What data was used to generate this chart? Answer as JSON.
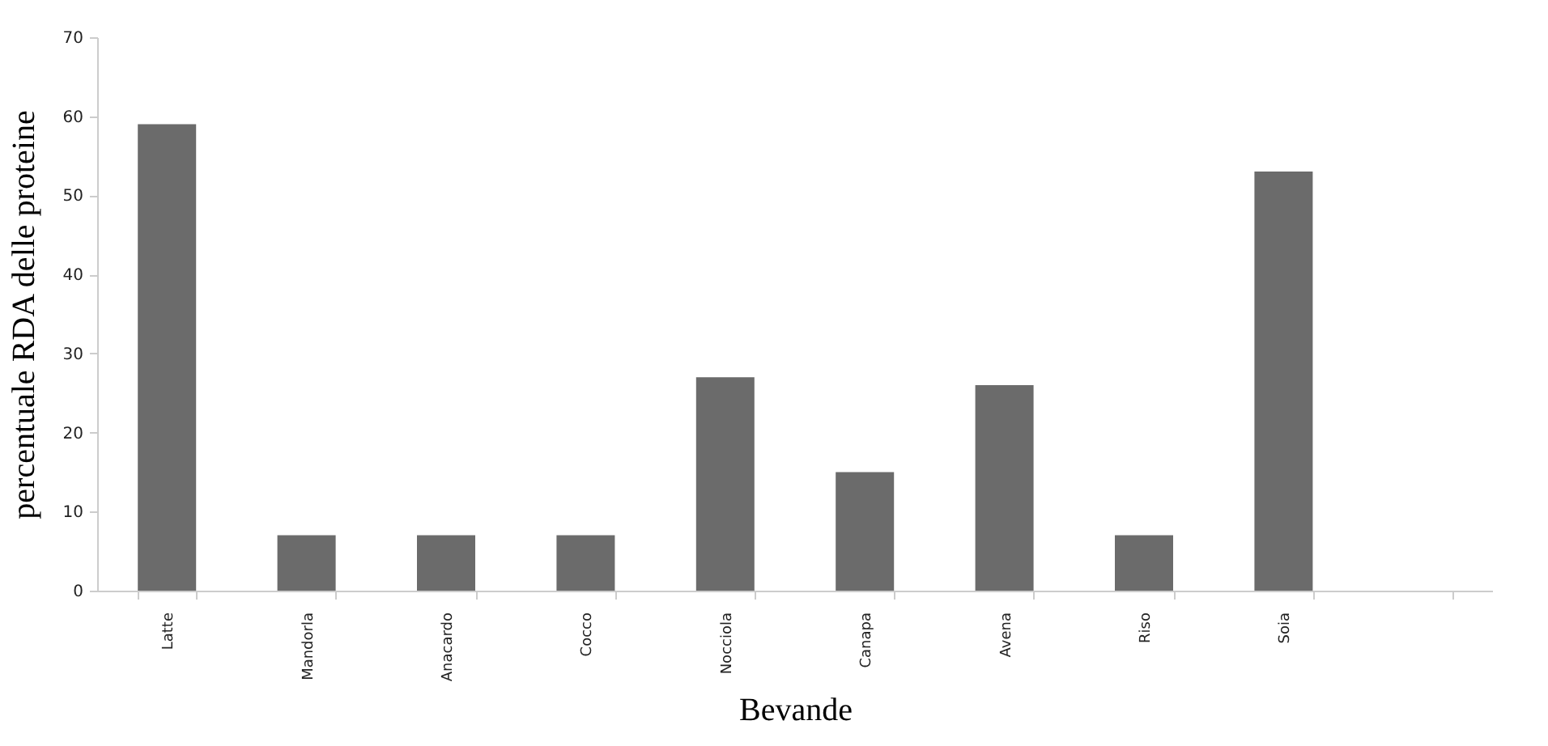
{
  "chart_data": {
    "type": "bar",
    "xlabel": "Bevande",
    "ylabel": "percentuale RDA delle proteine",
    "categories": [
      "Latte",
      "Mandorla",
      "Anacardo",
      "Cocco",
      "Nocciola",
      "Canapa",
      "Avena",
      "Riso",
      "Soia",
      null
    ],
    "values": [
      59,
      7,
      7,
      7,
      27,
      15,
      26,
      7,
      53,
      null
    ],
    "color": "#6b6b6b",
    "ylim": [
      0,
      70
    ],
    "yticks": [
      0,
      10,
      20,
      30,
      40,
      50,
      60,
      70
    ]
  }
}
